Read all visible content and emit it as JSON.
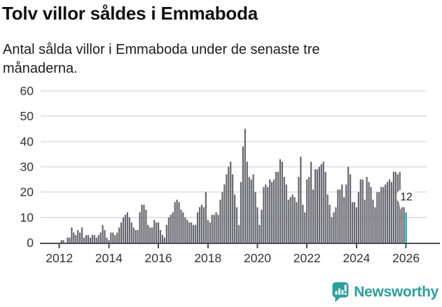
{
  "header": {
    "title": "Tolv villor såldes i Emmaboda",
    "subtitle": "Antal sålda villor i Emmaboda under de senaste tre månaderna."
  },
  "chart_data": {
    "type": "bar",
    "title": "Tolv villor såldes i Emmaboda",
    "subtitle": "Antal sålda villor i Emmaboda under de senaste tre månaderna.",
    "x_unit": "month",
    "start_month": "2012-01",
    "end_month": "2026-01",
    "values": [
      0,
      1,
      1,
      0,
      2,
      2,
      6,
      4,
      3,
      5,
      4,
      6,
      2,
      3,
      3,
      2,
      3,
      3,
      2,
      3,
      4,
      7,
      5,
      2,
      1,
      4,
      4,
      3,
      4,
      6,
      8,
      10,
      11,
      12,
      10,
      8,
      6,
      5,
      5,
      12,
      15,
      15,
      13,
      7,
      6,
      6,
      9,
      8,
      8,
      5,
      3,
      2,
      7,
      10,
      11,
      12,
      16,
      17,
      16,
      13,
      12,
      10,
      9,
      8,
      8,
      7,
      7,
      12,
      14,
      15,
      14,
      20,
      9,
      8,
      11,
      11,
      12,
      11,
      17,
      20,
      23,
      27,
      30,
      32,
      27,
      19,
      14,
      7,
      24,
      38,
      45,
      32,
      26,
      25,
      27,
      20,
      14,
      7,
      13,
      22,
      23,
      22,
      25,
      24,
      25,
      28,
      28,
      33,
      32,
      26,
      23,
      17,
      18,
      19,
      18,
      16,
      26,
      34,
      15,
      12,
      25,
      26,
      32,
      21,
      29,
      29,
      30,
      31,
      32,
      28,
      19,
      15,
      10,
      12,
      14,
      21,
      21,
      23,
      18,
      23,
      30,
      27,
      16,
      16,
      14,
      20,
      25,
      25,
      17,
      26,
      24,
      22,
      17,
      14,
      20,
      20,
      22,
      22,
      23,
      24,
      25,
      24,
      28,
      28,
      27,
      28,
      17,
      14,
      12
    ],
    "highlight_last": true,
    "last_value": 12,
    "annotation_label": "12",
    "x_tick_labels": [
      "2012",
      "2014",
      "2016",
      "2018",
      "2020",
      "2022",
      "2024",
      "2026"
    ],
    "y_tick_labels": [
      "0",
      "10",
      "20",
      "30",
      "40",
      "50",
      "60"
    ],
    "ylim": [
      0,
      60
    ],
    "grid": true,
    "legend": "none"
  },
  "footer": {
    "brand": "Newsworthy"
  },
  "colors": {
    "bar": "#67676F",
    "highlight": "#0CA3A3",
    "brand": "#2E9E9E",
    "grid": "#E3E3E3",
    "axis": "#4D4D55",
    "tick_text": "#333333",
    "callout_bg": "#FFFFFF",
    "callout_text": "#1A1A1A"
  }
}
